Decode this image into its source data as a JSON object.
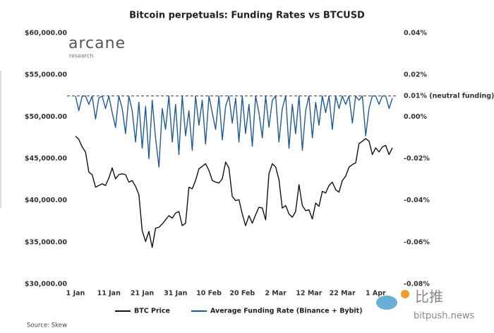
{
  "chart_data": {
    "type": "line",
    "title": "Bitcoin perpetuals: Funding Rates vs BTCUSD",
    "logo": {
      "name": "arcane",
      "tagline": "research"
    },
    "source": "Source: Skew",
    "watermark": {
      "name": "比推",
      "site": "bitpush.news"
    },
    "categories": [
      "1 Jan",
      null,
      null,
      null,
      null,
      null,
      null,
      null,
      null,
      null,
      "11 Jan",
      null,
      null,
      null,
      null,
      null,
      null,
      null,
      null,
      null,
      "21 Jan",
      null,
      null,
      null,
      null,
      null,
      null,
      null,
      null,
      null,
      "31 Jan",
      null,
      null,
      null,
      null,
      null,
      null,
      null,
      null,
      null,
      "10 Feb",
      null,
      null,
      null,
      null,
      null,
      null,
      null,
      null,
      null,
      "20 Feb",
      null,
      null,
      null,
      null,
      null,
      null,
      null,
      null,
      null,
      "2 Mar",
      null,
      null,
      null,
      null,
      null,
      null,
      null,
      null,
      null,
      "12 Mar",
      null,
      null,
      null,
      null,
      null,
      null,
      null,
      null,
      null,
      "22 Mar",
      null,
      null,
      null,
      null,
      null,
      null,
      null,
      null,
      null,
      "1 Apr",
      null,
      null,
      null,
      null,
      null
    ],
    "series": [
      {
        "name": "BTC Price",
        "color": "#111111",
        "axis": "y",
        "values": [
          47700,
          47300,
          46400,
          45800,
          43400,
          43100,
          41600,
          41800,
          42000,
          41800,
          42700,
          43900,
          42600,
          43100,
          43200,
          43100,
          42200,
          42400,
          41700,
          40700,
          36400,
          35100,
          36300,
          34400,
          36700,
          36800,
          37200,
          37700,
          38200,
          37900,
          38500,
          38700,
          37000,
          37300,
          41600,
          41400,
          42400,
          43800,
          44100,
          44400,
          43600,
          42400,
          42200,
          42100,
          42600,
          44600,
          43900,
          40500,
          40000,
          40100,
          38400,
          37000,
          38200,
          37300,
          38300,
          39200,
          39100,
          37700,
          43200,
          44400,
          44000,
          42500,
          39100,
          39400,
          38400,
          38000,
          38700,
          41900,
          39400,
          38800,
          38900,
          37800,
          39700,
          39300,
          41100,
          40900,
          41800,
          42200,
          41300,
          41000,
          42400,
          42900,
          44000,
          44300,
          44500,
          46800,
          47100,
          47400,
          47100,
          45500,
          46300,
          45800,
          46400,
          46600,
          45500,
          46300
        ]
      },
      {
        "name": "Average Funding Rate (Binance + Bybit)",
        "color": "#1f5a99",
        "axis": "y2",
        "values": [
          0.01,
          0.003,
          0.01,
          0.01,
          0.006,
          0.01,
          -0.001,
          0.009,
          0.01,
          0.004,
          0.01,
          0.002,
          -0.005,
          0.01,
          0.004,
          -0.008,
          0.01,
          0.003,
          -0.012,
          0.007,
          -0.015,
          0.005,
          -0.02,
          0.008,
          -0.01,
          -0.024,
          0.004,
          -0.006,
          0.01,
          -0.012,
          0.006,
          -0.018,
          0.01,
          -0.009,
          0.003,
          -0.016,
          0.01,
          -0.004,
          0.008,
          -0.013,
          0.01,
          0.002,
          -0.006,
          0.01,
          -0.011,
          0.005,
          0.01,
          -0.003,
          0.009,
          -0.012,
          0.01,
          -0.008,
          0.006,
          -0.014,
          0.01,
          0.002,
          -0.01,
          0.01,
          -0.005,
          0.008,
          0.01,
          -0.012,
          0.004,
          0.01,
          -0.015,
          0.006,
          -0.008,
          0.01,
          -0.016,
          0.003,
          0.01,
          -0.01,
          0.007,
          -0.004,
          0.01,
          0.002,
          0.01,
          -0.006,
          0.01,
          0.004,
          0.01,
          0.006,
          0.01,
          -0.003,
          0.01,
          0.008,
          0.01,
          -0.009,
          0.004,
          0.01,
          0.01,
          0.006,
          0.01,
          0.01,
          0.004,
          0.009
        ]
      }
    ],
    "ylim": [
      30000,
      60000
    ],
    "yticks": [
      {
        "value": 60000,
        "label": "$60,000.00"
      },
      {
        "value": 55000,
        "label": "$55,000.00"
      },
      {
        "value": 50000,
        "label": "$50,000.00"
      },
      {
        "value": 45000,
        "label": "$45,000.00"
      },
      {
        "value": 40000,
        "label": "$40,000.00"
      },
      {
        "value": 35000,
        "label": "$35,000.00"
      },
      {
        "value": 30000,
        "label": "$30,000.00"
      }
    ],
    "y2lim": [
      -0.08,
      0.04
    ],
    "y2ticks": [
      {
        "value": 0.04,
        "label": "0.04%"
      },
      {
        "value": 0.02,
        "label": "0.02%"
      },
      {
        "value": 0,
        "label": "0.00%"
      },
      {
        "value": -0.02,
        "label": "-0.02%"
      },
      {
        "value": -0.04,
        "label": "-0.04%"
      },
      {
        "value": -0.06,
        "label": "-0.06%"
      },
      {
        "value": -0.08,
        "label": "-0.08%"
      }
    ],
    "annotation": {
      "label": "0.01% (neutral funding)",
      "value": 0.01,
      "axis": "y2"
    },
    "legend": "bottom"
  }
}
